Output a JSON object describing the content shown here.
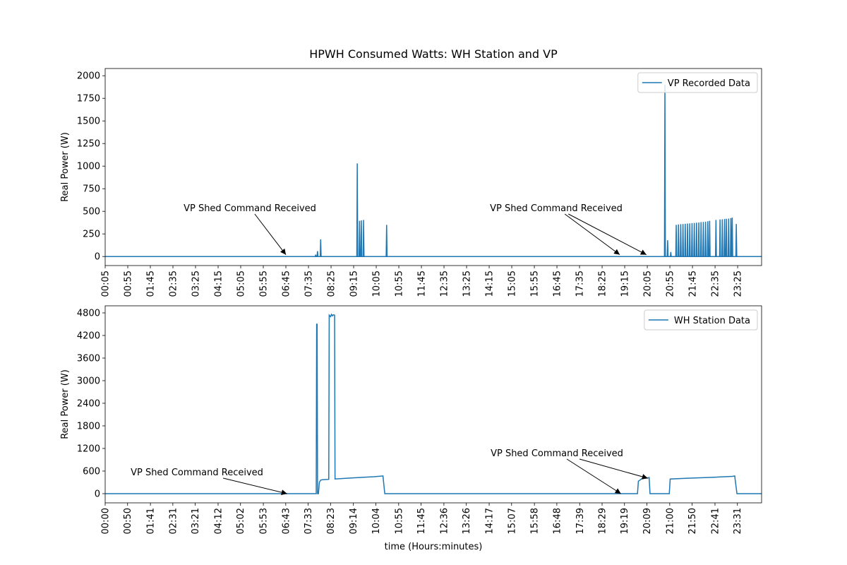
{
  "chart_data": [
    {
      "type": "line",
      "title": "HPWH Consumed Watts: WH Station and VP",
      "ylabel": "Real Power (W)",
      "xlim": [
        5,
        1458
      ],
      "ylim": [
        -100,
        2080
      ],
      "xticks": [
        {
          "value": 5,
          "label": "00:05"
        },
        {
          "value": 55,
          "label": "00:55"
        },
        {
          "value": 105,
          "label": "01:45"
        },
        {
          "value": 155,
          "label": "02:35"
        },
        {
          "value": 205,
          "label": "03:25"
        },
        {
          "value": 255,
          "label": "04:15"
        },
        {
          "value": 305,
          "label": "05:05"
        },
        {
          "value": 355,
          "label": "05:55"
        },
        {
          "value": 405,
          "label": "06:45"
        },
        {
          "value": 455,
          "label": "07:35"
        },
        {
          "value": 505,
          "label": "08:25"
        },
        {
          "value": 555,
          "label": "09:15"
        },
        {
          "value": 605,
          "label": "10:05"
        },
        {
          "value": 655,
          "label": "10:55"
        },
        {
          "value": 705,
          "label": "11:45"
        },
        {
          "value": 755,
          "label": "12:35"
        },
        {
          "value": 805,
          "label": "13:25"
        },
        {
          "value": 855,
          "label": "14:15"
        },
        {
          "value": 905,
          "label": "15:05"
        },
        {
          "value": 955,
          "label": "15:55"
        },
        {
          "value": 1005,
          "label": "16:45"
        },
        {
          "value": 1055,
          "label": "17:35"
        },
        {
          "value": 1105,
          "label": "18:25"
        },
        {
          "value": 1155,
          "label": "19:15"
        },
        {
          "value": 1205,
          "label": "20:05"
        },
        {
          "value": 1255,
          "label": "20:55"
        },
        {
          "value": 1305,
          "label": "21:45"
        },
        {
          "value": 1355,
          "label": "22:35"
        },
        {
          "value": 1405,
          "label": "23:25"
        }
      ],
      "yticks": [
        0,
        250,
        500,
        750,
        1000,
        1250,
        1500,
        1750,
        2000
      ],
      "legend": "upper right",
      "series": [
        {
          "name": "VP Recorded Data",
          "color": "#1f77b4",
          "x": [
            5,
            470,
            471,
            472,
            474,
            475,
            476,
            481,
            482,
            483,
            562,
            563,
            564,
            567,
            568,
            569,
            571,
            572,
            573,
            576,
            577,
            578,
            627,
            628,
            629,
            1243,
            1244,
            1245,
            1249,
            1250,
            1251,
            1256,
            1257,
            1258,
            1268,
            1269,
            1270,
            1273,
            1274,
            1275,
            1278,
            1279,
            1280,
            1283,
            1284,
            1285,
            1288,
            1289,
            1290,
            1293,
            1294,
            1295,
            1298,
            1299,
            1300,
            1303,
            1304,
            1305,
            1308,
            1309,
            1310,
            1313,
            1314,
            1315,
            1318,
            1319,
            1320,
            1323,
            1324,
            1325,
            1328,
            1329,
            1330,
            1333,
            1334,
            1335,
            1338,
            1339,
            1340,
            1342,
            1343,
            1344,
            1356,
            1357,
            1358,
            1365,
            1366,
            1367,
            1370,
            1371,
            1372,
            1375,
            1376,
            1377,
            1379,
            1380,
            1381,
            1384,
            1385,
            1386,
            1389,
            1390,
            1391,
            1392,
            1393,
            1394,
            1401,
            1402,
            1403,
            1458
          ],
          "values": [
            0,
            0,
            20,
            0,
            0,
            60,
            0,
            0,
            190,
            0,
            0,
            1030,
            0,
            0,
            395,
            0,
            0,
            400,
            0,
            0,
            405,
            0,
            0,
            350,
            0,
            0,
            1900,
            0,
            0,
            180,
            0,
            0,
            50,
            0,
            0,
            350,
            0,
            0,
            355,
            0,
            0,
            358,
            0,
            0,
            360,
            0,
            0,
            362,
            0,
            0,
            365,
            0,
            0,
            367,
            0,
            0,
            370,
            0,
            0,
            372,
            0,
            0,
            375,
            0,
            0,
            377,
            0,
            0,
            380,
            0,
            0,
            382,
            0,
            0,
            385,
            0,
            0,
            390,
            0,
            0,
            395,
            0,
            0,
            405,
            0,
            0,
            410,
            0,
            0,
            412,
            0,
            0,
            415,
            0,
            0,
            418,
            0,
            0,
            420,
            0,
            0,
            425,
            0,
            0,
            430,
            0,
            0,
            360,
            0,
            0
          ]
        }
      ],
      "annotations": [
        {
          "text": "VP Shed Command Received",
          "points": [
            [
              405,
              20
            ]
          ]
        },
        {
          "text": "VP Shed Command Received",
          "points": [
            [
              1144,
              20
            ],
            [
              1203,
              20
            ]
          ]
        }
      ]
    },
    {
      "type": "line",
      "ylabel": "Real Power (W)",
      "xlabel": "time (Hours:minutes)",
      "xlim": [
        0,
        1465
      ],
      "ylim": [
        -244,
        4988
      ],
      "xticks": [
        {
          "value": 0,
          "label": "00:00"
        },
        {
          "value": 50,
          "label": "00:50"
        },
        {
          "value": 101,
          "label": "01:41"
        },
        {
          "value": 151,
          "label": "02:31"
        },
        {
          "value": 201,
          "label": "03:21"
        },
        {
          "value": 252,
          "label": "04:12"
        },
        {
          "value": 302,
          "label": "05:02"
        },
        {
          "value": 353,
          "label": "05:53"
        },
        {
          "value": 403,
          "label": "06:43"
        },
        {
          "value": 453,
          "label": "07:33"
        },
        {
          "value": 503,
          "label": "08:23"
        },
        {
          "value": 554,
          "label": "09:14"
        },
        {
          "value": 604,
          "label": "10:04"
        },
        {
          "value": 655,
          "label": "10:55"
        },
        {
          "value": 705,
          "label": "11:45"
        },
        {
          "value": 756,
          "label": "12:36"
        },
        {
          "value": 806,
          "label": "13:26"
        },
        {
          "value": 857,
          "label": "14:17"
        },
        {
          "value": 907,
          "label": "15:07"
        },
        {
          "value": 958,
          "label": "15:58"
        },
        {
          "value": 1008,
          "label": "16:48"
        },
        {
          "value": 1059,
          "label": "17:39"
        },
        {
          "value": 1109,
          "label": "18:29"
        },
        {
          "value": 1159,
          "label": "19:19"
        },
        {
          "value": 1209,
          "label": "20:09"
        },
        {
          "value": 1260,
          "label": "21:00"
        },
        {
          "value": 1310,
          "label": "21:50"
        },
        {
          "value": 1361,
          "label": "22:41"
        },
        {
          "value": 1411,
          "label": "23:31"
        }
      ],
      "yticks": [
        0,
        600,
        1200,
        1800,
        2400,
        3000,
        3600,
        4200,
        4800
      ],
      "legend": "upper right",
      "series": [
        {
          "name": "WH Station Data",
          "color": "#1f77b4",
          "x": [
            0,
            469,
            471,
            472,
            473,
            474,
            476,
            478,
            481,
            485,
            499,
            500,
            503,
            505,
            507,
            509,
            512,
            513,
            540,
            570,
            600,
            620,
            624,
            1188,
            1190,
            1198,
            1212,
            1214,
            1216,
            1259,
            1261,
            1300,
            1350,
            1400,
            1405,
            1410,
            1465
          ],
          "values": [
            0,
            0,
            0,
            4500,
            4500,
            0,
            0,
            300,
            360,
            370,
            380,
            4740,
            4700,
            4760,
            4720,
            4750,
            4740,
            390,
            410,
            430,
            450,
            470,
            0,
            0,
            330,
            400,
            420,
            430,
            0,
            0,
            390,
            410,
            430,
            460,
            470,
            0,
            0
          ]
        }
      ],
      "annotations": [
        {
          "text": "VP Shed Command Received",
          "points": [
            [
              406,
              0
            ]
          ]
        },
        {
          "text": "VP Shed Command Received",
          "points": [
            [
              1151,
              0
            ],
            [
              1211,
              410
            ]
          ]
        }
      ]
    }
  ]
}
